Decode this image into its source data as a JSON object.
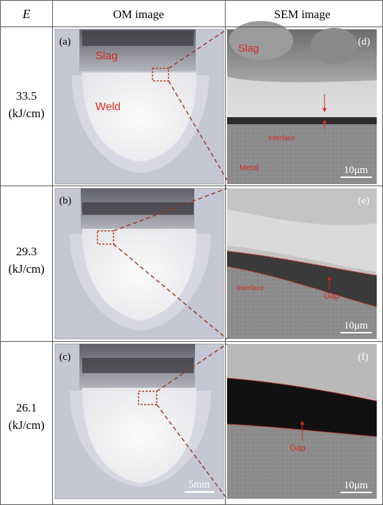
{
  "table": {
    "headers": [
      "E",
      "OM image",
      "SEM image"
    ]
  },
  "rows": [
    {
      "energy": "33.5",
      "unit": "(kJ/cm)",
      "om": {
        "letter": "(a)",
        "labels": [
          "Slag",
          "Weld"
        ]
      },
      "sem": {
        "letter": "(d)",
        "labels": [
          "Slag",
          "Interface",
          "Metal"
        ],
        "scale": "10μm"
      }
    },
    {
      "energy": "29.3",
      "unit": "(kJ/cm)",
      "om": {
        "letter": "(b)",
        "labels": []
      },
      "sem": {
        "letter": "(e)",
        "labels": [
          "Interface",
          "Gap"
        ],
        "scale": "10μm"
      }
    },
    {
      "energy": "26.1",
      "unit": "(kJ/cm)",
      "om": {
        "letter": "(c)",
        "labels": [],
        "scale": "5mm"
      },
      "sem": {
        "letter": "(f)",
        "labels": [
          "Gap"
        ],
        "scale": "10μm"
      }
    }
  ],
  "colors": {
    "annotation": "#d42a20",
    "grid": "#555555",
    "om_background": "#c7c9d6",
    "weld": "#f1f0f2",
    "sem_dark": "#1a1a1a",
    "sem_mid": "#8a8a8a"
  }
}
